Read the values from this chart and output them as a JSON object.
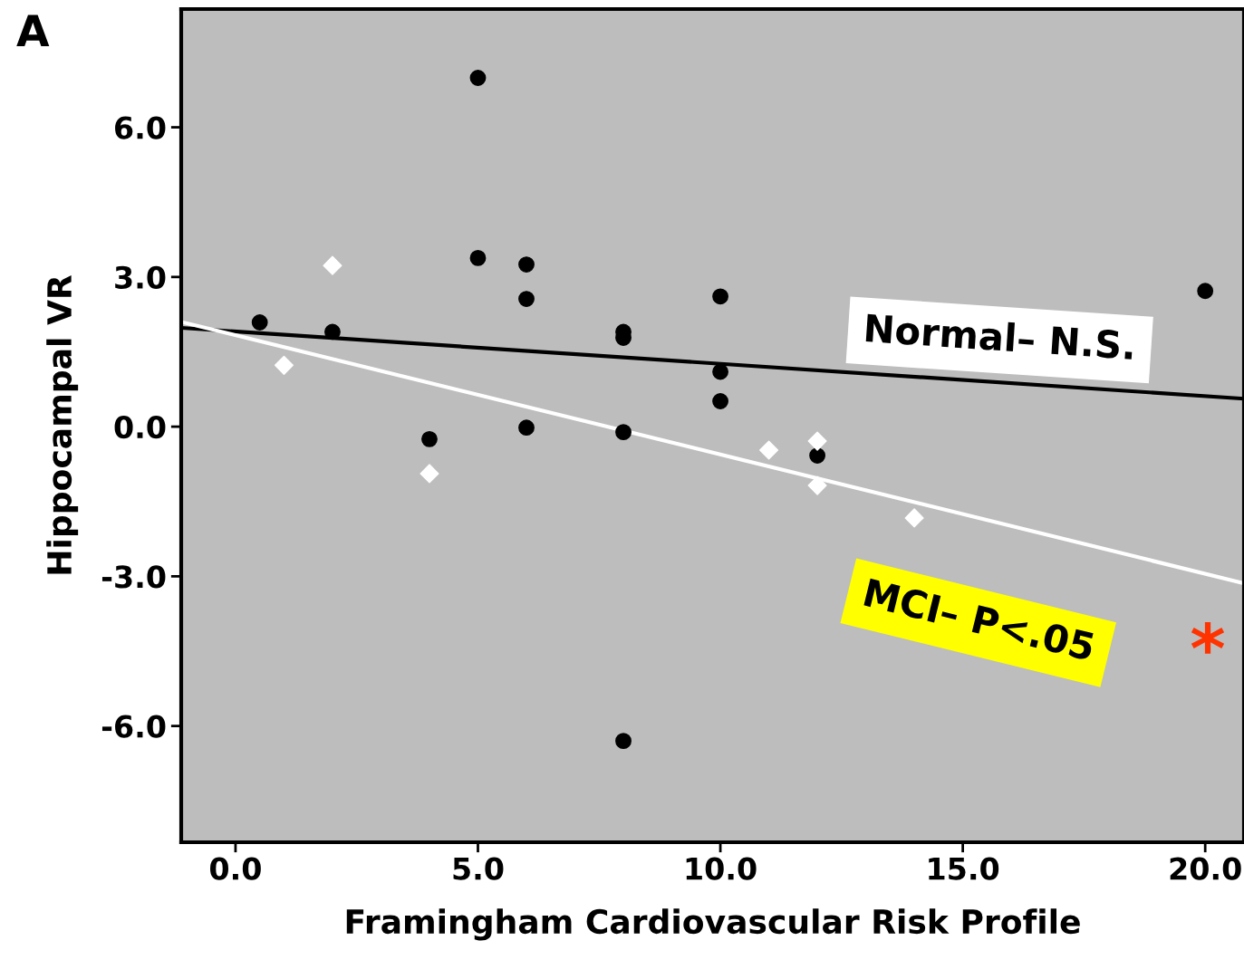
{
  "chart_data": {
    "type": "scatter",
    "xlabel": "Framingham Cardiovascular Risk Profile",
    "ylabel": "Hippocampal VR",
    "xlim": [
      -1.12,
      20.8
    ],
    "ylim": [
      -8.33,
      8.37
    ],
    "xticks": [
      {
        "value": 0,
        "label": "0.0"
      },
      {
        "value": 5,
        "label": "5.0"
      },
      {
        "value": 10,
        "label": "10.0"
      },
      {
        "value": 15,
        "label": "15.0"
      },
      {
        "value": 20,
        "label": "20.0"
      }
    ],
    "yticks": [
      {
        "value": -6,
        "label": "-6.0"
      },
      {
        "value": -3,
        "label": "-3.0"
      },
      {
        "value": 0,
        "label": "0.0"
      },
      {
        "value": 3,
        "label": "3.0"
      },
      {
        "value": 6,
        "label": "6.0"
      }
    ],
    "grid": false,
    "legend": false,
    "series": [
      {
        "marker": "circle",
        "color": "#000000",
        "x": [
          0.5,
          2,
          5,
          5,
          6,
          6,
          6,
          4,
          8,
          8,
          8,
          8,
          10,
          10,
          10,
          12,
          20
        ],
        "values": [
          2.09,
          1.9,
          6.99,
          3.38,
          3.25,
          2.56,
          -0.02,
          -0.25,
          1.9,
          1.78,
          -0.11,
          -6.3,
          2.61,
          1.1,
          0.51,
          -0.58,
          2.72
        ]
      },
      {
        "marker": "diamond",
        "color": "#ffffff",
        "x": [
          2,
          1,
          4,
          11,
          12,
          12,
          14
        ],
        "values": [
          3.23,
          1.23,
          -0.94,
          -0.47,
          -0.29,
          -1.18,
          -1.83
        ]
      },
      {
        "type": "line",
        "marker": "none",
        "name": "Normal– N.S.",
        "color": "#000000",
        "x": [
          -1.12,
          20.8
        ],
        "values": [
          1.98,
          0.56
        ]
      },
      {
        "type": "line",
        "marker": "none",
        "name": "MCI– P<.05",
        "color": "#ffffff",
        "x": [
          -1.12,
          20.8
        ],
        "values": [
          2.1,
          -3.14
        ]
      }
    ],
    "annotations": [
      "A",
      "*"
    ]
  }
}
